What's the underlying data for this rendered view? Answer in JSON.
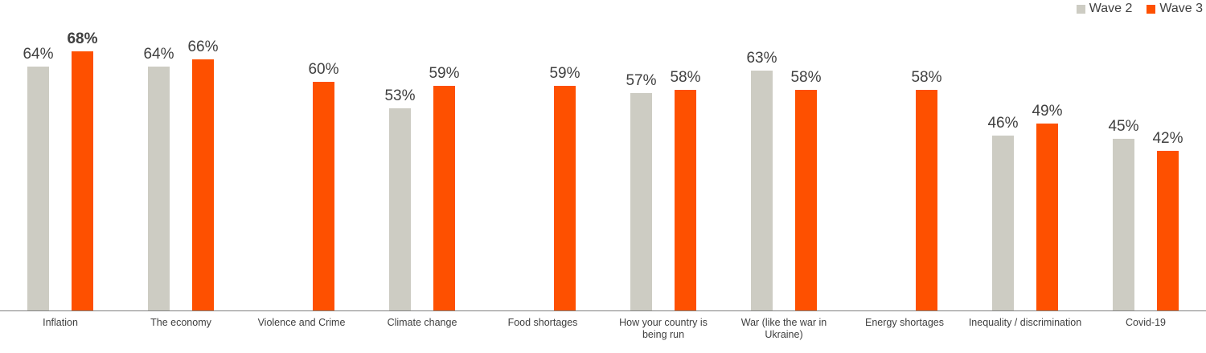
{
  "chart_data": {
    "type": "bar",
    "title": "",
    "xlabel": "",
    "ylabel": "",
    "categories": [
      "Inflation",
      "The economy",
      "Violence and Crime",
      "Climate change",
      "Food shortages",
      "How your country is being run",
      "War (like the war in Ukraine)",
      "Energy shortages",
      "Inequality / discrimination",
      "Covid-19"
    ],
    "series": [
      {
        "name": "Wave 2",
        "color": "#cdccc3",
        "values": [
          64,
          64,
          null,
          53,
          null,
          57,
          63,
          null,
          46,
          45
        ]
      },
      {
        "name": "Wave 3",
        "color": "#fe5000",
        "values": [
          68,
          66,
          60,
          59,
          59,
          58,
          58,
          58,
          49,
          42
        ]
      }
    ],
    "data_label_format": "{value}%",
    "emphasized_label": {
      "series_index": 1,
      "category_index": 0,
      "text": "68%"
    },
    "ylim": [
      0,
      82
    ],
    "grid": false,
    "legend_position": "top-right",
    "axis_line_color": "#7f7f7f",
    "label_text_color": "#404040"
  }
}
